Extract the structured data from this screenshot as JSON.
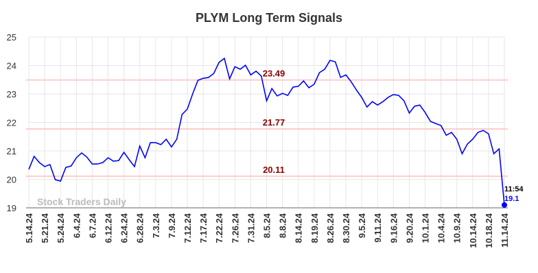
{
  "chart_data": {
    "type": "line",
    "title": "PLYM Long Term Signals",
    "watermark": "Stock Traders Daily",
    "x": [
      "5.14.24",
      null,
      null,
      "5.21.24",
      null,
      null,
      "5.24.24",
      null,
      null,
      "6.4.24",
      null,
      null,
      "6.7.24",
      null,
      null,
      "6.12.24",
      null,
      null,
      "6.24.24",
      null,
      null,
      "6.28.24",
      null,
      null,
      "7.3.24",
      null,
      null,
      "7.9.24",
      null,
      null,
      "7.12.24",
      null,
      null,
      "7.17.24",
      null,
      null,
      "7.22.24",
      null,
      null,
      "7.26.24",
      null,
      null,
      "7.31.24",
      null,
      null,
      "8.5.24",
      null,
      null,
      "8.8.24",
      null,
      null,
      "8.14.24",
      null,
      null,
      "8.19.24",
      null,
      null,
      "8.26.24",
      null,
      null,
      "8.30.24",
      null,
      null,
      "9.5.24",
      null,
      null,
      "9.11.24",
      null,
      null,
      "9.16.24",
      null,
      null,
      "9.20.24",
      null,
      null,
      "10.1.24",
      null,
      null,
      "10.4.24",
      null,
      null,
      "10.9.24",
      null,
      null,
      "10.14.24",
      null,
      null,
      "10.18.24",
      null,
      null,
      "11.14.24"
    ],
    "series": [
      {
        "color": "#0000ff",
        "values": [
          20.35,
          20.81,
          20.59,
          20.45,
          20.52,
          19.99,
          19.94,
          20.42,
          20.47,
          20.76,
          20.93,
          20.78,
          20.54,
          20.54,
          20.59,
          20.76,
          20.64,
          20.66,
          20.95,
          20.69,
          20.45,
          21.17,
          20.76,
          21.29,
          21.29,
          21.22,
          21.41,
          21.14,
          21.41,
          22.28,
          22.47,
          23.0,
          23.48,
          23.55,
          23.58,
          23.72,
          24.11,
          24.25,
          23.53,
          23.96,
          23.87,
          24.01,
          23.67,
          23.8,
          23.63,
          22.76,
          23.19,
          22.93,
          23.02,
          22.95,
          23.24,
          23.27,
          23.46,
          23.22,
          23.34,
          23.75,
          23.87,
          24.18,
          24.13,
          23.58,
          23.67,
          23.43,
          23.14,
          22.88,
          22.54,
          22.73,
          22.61,
          22.73,
          22.88,
          22.98,
          22.95,
          22.76,
          22.33,
          22.57,
          22.61,
          22.35,
          22.04,
          21.96,
          21.89,
          21.55,
          21.65,
          21.41,
          20.9,
          21.24,
          21.41,
          21.65,
          21.72,
          21.6,
          20.9,
          21.07,
          19.1
        ]
      }
    ],
    "last_point_time": "11:54",
    "reference_lines": [
      {
        "value": 23.49,
        "color": "#ffcccc",
        "label_color": "#8b0000"
      },
      {
        "value": 21.77,
        "color": "#ffcccc",
        "label_color": "#8b0000"
      },
      {
        "value": 20.11,
        "color": "#ffcccc",
        "label_color": "#8b0000"
      }
    ],
    "ylim": [
      19,
      25
    ],
    "yticks": [
      19,
      20,
      21,
      22,
      23,
      24,
      25
    ],
    "grid": true
  }
}
